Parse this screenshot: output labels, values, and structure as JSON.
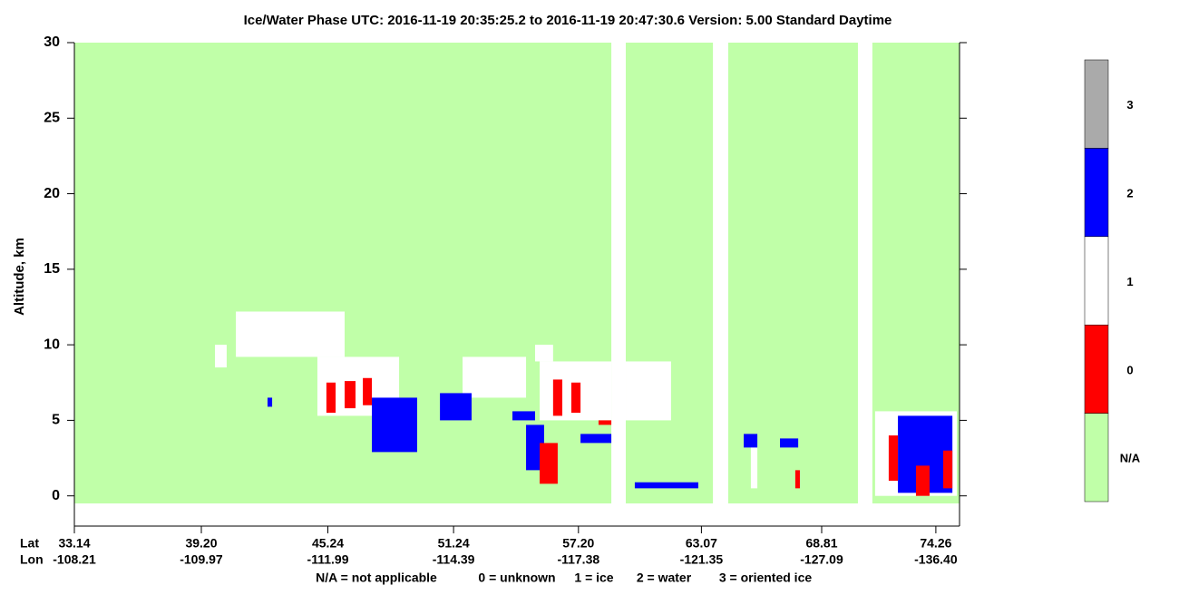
{
  "chart_data": {
    "type": "heatmap",
    "title": "Ice/Water Phase    UTC:  2016-11-19    20:35:25.2   to   2016-11-19    20:47:30.6     Version: 5.00   Standard Daytime",
    "y_label": "Altitude, km",
    "ylim": [
      -2,
      30
    ],
    "yticks": [
      0,
      5,
      10,
      15,
      20,
      25,
      30
    ],
    "xlim": [
      33.14,
      75.39
    ],
    "x_row_labels": [
      "Lat",
      "Lon"
    ],
    "xticks": [
      33.14,
      {
        "value": 39.2,
        "label": "39.20"
      },
      45.24,
      51.24,
      {
        "value": 57.2,
        "label": "57.20"
      },
      63.07,
      68.81,
      74.26
    ],
    "lon_labels": [
      "-108.21",
      "-109.97",
      "-111.99",
      "-114.39",
      "-117.38",
      "-121.35",
      "-127.09",
      "-136.40"
    ],
    "colorbar": {
      "categories": [
        "N/A",
        "0",
        "1",
        "2",
        "3"
      ],
      "colors": [
        "#c0ffa8",
        "#ff0000",
        "#ffffff",
        "#0000ff",
        "#aaaaaa"
      ]
    },
    "na_alt": [
      -0.5,
      30
    ],
    "na_segments": [
      [
        33.14,
        58.77
      ],
      [
        59.46,
        63.62
      ],
      [
        64.35,
        70.54
      ],
      [
        71.23,
        75.39
      ]
    ],
    "features": [
      {
        "lat": [
          40.85,
          46.04
        ],
        "alt": [
          9.2,
          12.2
        ],
        "phase": 1
      },
      {
        "lat": [
          44.74,
          48.64
        ],
        "alt": [
          5.3,
          9.2
        ],
        "phase": 1
      },
      {
        "lat": [
          39.85,
          40.41
        ],
        "alt": [
          8.5,
          10
        ],
        "phase": 1
      },
      {
        "lat": [
          51.67,
          54.7
        ],
        "alt": [
          6.5,
          9.2
        ],
        "phase": 1
      },
      {
        "lat": [
          55.13,
          55.99
        ],
        "alt": [
          8.9,
          10
        ],
        "phase": 1
      },
      {
        "lat": [
          55.35,
          58.77
        ],
        "alt": [
          5,
          8.9
        ],
        "phase": 1
      },
      {
        "lat": [
          59.46,
          61.62
        ],
        "alt": [
          5,
          8.9
        ],
        "phase": 1
      },
      {
        "lat": [
          71.36,
          75.26
        ],
        "alt": [
          0,
          5.6
        ],
        "phase": 1
      },
      {
        "lat": [
          65.43,
          65.74
        ],
        "alt": [
          0.5,
          3.5
        ],
        "phase": 1
      },
      {
        "lat": [
          42.36,
          42.58
        ],
        "alt": [
          5.9,
          6.5
        ],
        "phase": 2
      },
      {
        "lat": [
          47.34,
          49.5
        ],
        "alt": [
          2.9,
          6.5
        ],
        "phase": 2
      },
      {
        "lat": [
          50.59,
          52.1
        ],
        "alt": [
          5,
          6.8
        ],
        "phase": 2
      },
      {
        "lat": [
          54.05,
          55.13
        ],
        "alt": [
          5,
          5.6
        ],
        "phase": 2
      },
      {
        "lat": [
          54.7,
          55.56
        ],
        "alt": [
          1.7,
          4.7
        ],
        "phase": 2
      },
      {
        "lat": [
          57.3,
          58.77
        ],
        "alt": [
          3.5,
          4.1
        ],
        "phase": 2
      },
      {
        "lat": [
          59.89,
          62.92
        ],
        "alt": [
          0.5,
          0.9
        ],
        "phase": 2
      },
      {
        "lat": [
          65.09,
          65.74
        ],
        "alt": [
          3.2,
          4.1
        ],
        "phase": 2
      },
      {
        "lat": [
          66.82,
          67.69
        ],
        "alt": [
          3.2,
          3.8
        ],
        "phase": 2
      },
      {
        "lat": [
          72.45,
          75.05
        ],
        "alt": [
          0.2,
          5.3
        ],
        "phase": 2
      },
      {
        "lat": [
          45.17,
          45.61
        ],
        "alt": [
          5.5,
          7.5
        ],
        "phase": 0
      },
      {
        "lat": [
          46.04,
          46.56
        ],
        "alt": [
          5.8,
          7.6
        ],
        "phase": 0
      },
      {
        "lat": [
          46.91,
          47.34
        ],
        "alt": [
          6,
          7.8
        ],
        "phase": 0
      },
      {
        "lat": [
          55.35,
          56.21
        ],
        "alt": [
          0.8,
          3.5
        ],
        "phase": 0
      },
      {
        "lat": [
          55.99,
          56.43
        ],
        "alt": [
          5.3,
          7.7
        ],
        "phase": 0
      },
      {
        "lat": [
          56.86,
          57.3
        ],
        "alt": [
          5.5,
          7.5
        ],
        "phase": 0
      },
      {
        "lat": [
          58.16,
          58.77
        ],
        "alt": [
          4.7,
          5
        ],
        "phase": 0
      },
      {
        "lat": [
          72.01,
          72.45
        ],
        "alt": [
          1,
          4
        ],
        "phase": 0
      },
      {
        "lat": [
          73.31,
          73.96
        ],
        "alt": [
          0,
          2
        ],
        "phase": 0
      },
      {
        "lat": [
          74.61,
          75.05
        ],
        "alt": [
          0.5,
          3
        ],
        "phase": 0
      },
      {
        "lat": [
          67.55,
          67.77
        ],
        "alt": [
          0.5,
          1.7
        ],
        "phase": 0
      }
    ],
    "note": [
      "N/A = not applicable",
      "0 = unknown",
      "1 = ice",
      "2 = water",
      "3 = oriented ice"
    ]
  }
}
